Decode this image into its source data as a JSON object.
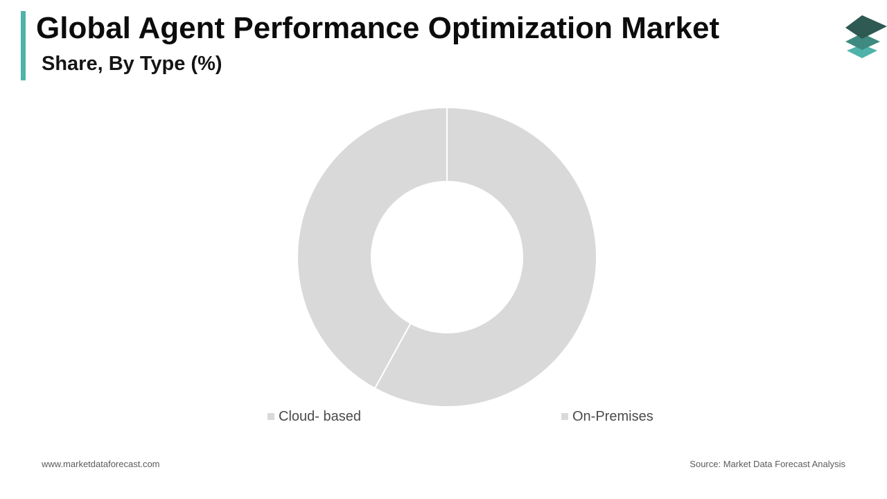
{
  "header": {
    "title": "Global Agent Performance Optimization Market",
    "subtitle": "Share, By Type (%)"
  },
  "colors": {
    "accent": "#4fb3aa",
    "slice_fill": "#d9d9d9",
    "slice_stroke": "#ffffff",
    "logo_dark": "#2e5a53",
    "logo_mid": "#3e8a80",
    "logo_light": "#4fb3aa"
  },
  "chart_data": {
    "type": "pie",
    "variant": "donut",
    "categories": [
      "Cloud- based",
      "On-Premises"
    ],
    "values": [
      42,
      58
    ],
    "legend": "bottom"
  },
  "footer": {
    "website": "www.marketdataforecast.com",
    "source": "Source: Market Data Forecast Analysis"
  }
}
